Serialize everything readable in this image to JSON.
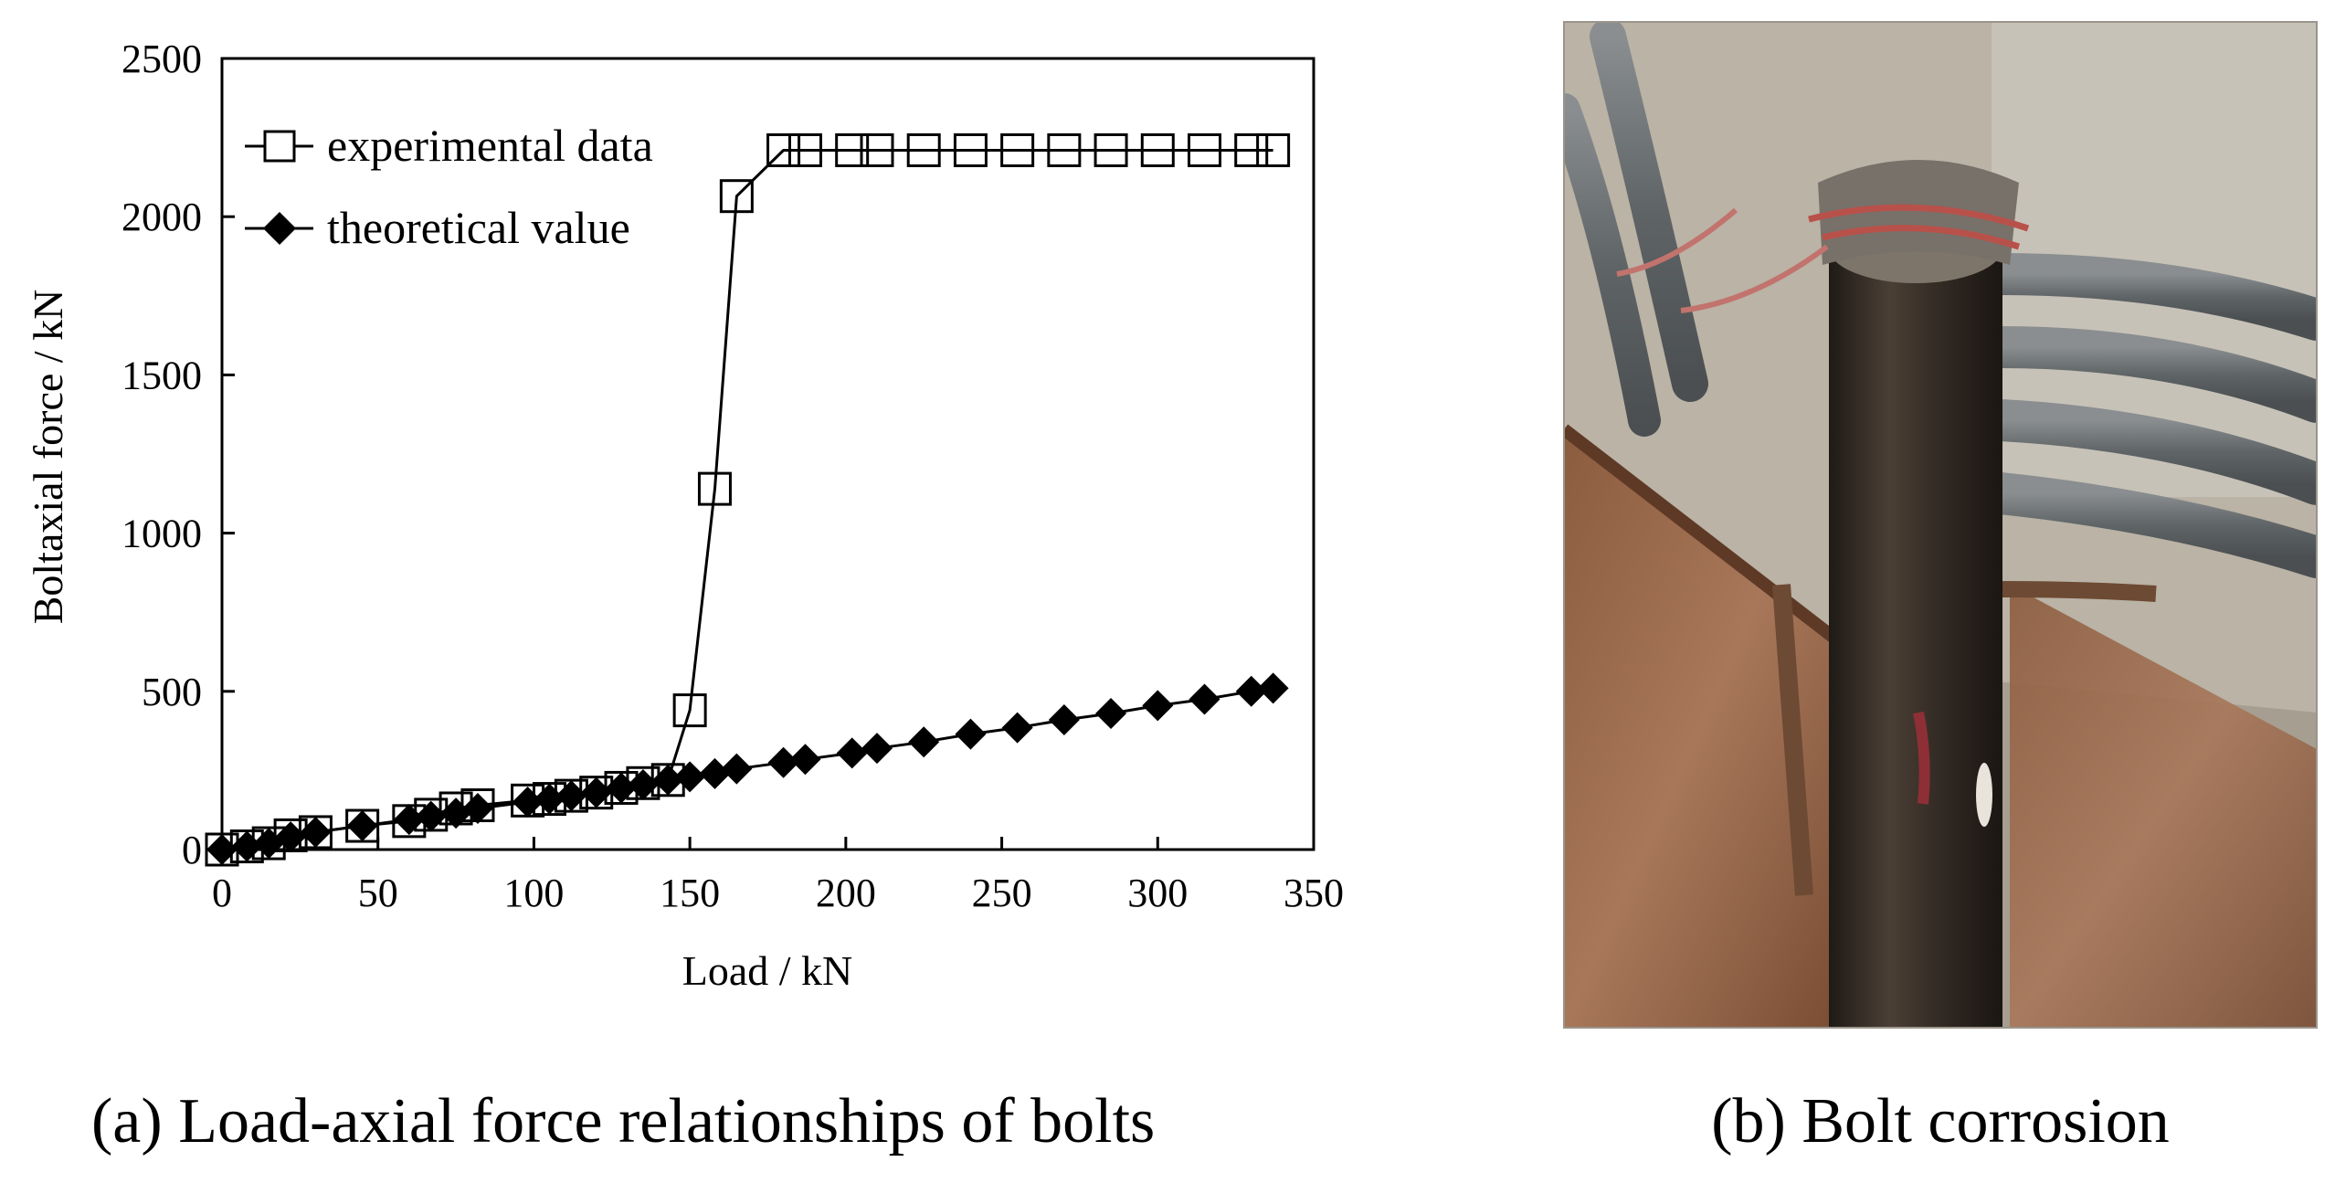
{
  "captions": {
    "a": "(a) Load-axial force relationships of bolts",
    "b": "(b) Bolt corrosion"
  },
  "photo": {
    "subject": "corroded bolt photo",
    "colors": {
      "background": "#b8b2a6",
      "rail": "#9a6a4a",
      "bolt": "#3a3028",
      "cables": "#6f7375",
      "floor": "#a69e90"
    }
  },
  "chart_data": {
    "type": "line",
    "xlabel": "Load / kN",
    "ylabel": "Boltaxial force / kN",
    "xlim": [
      0,
      350
    ],
    "ylim": [
      0,
      2500
    ],
    "xticks": [
      "0",
      "50",
      "100",
      "150",
      "200",
      "250",
      "300",
      "350"
    ],
    "yticks": [
      "0",
      "500",
      "1000",
      "1500",
      "2000",
      "2500"
    ],
    "grid": false,
    "legend_position": "top-left",
    "series": [
      {
        "name": "experimental data",
        "marker": "open-square",
        "color": "#000000",
        "x": [
          0,
          8,
          15,
          22,
          30,
          45,
          60,
          67,
          75,
          82,
          98,
          105,
          112,
          120,
          128,
          135,
          143,
          150,
          158,
          165,
          180,
          187,
          202,
          210,
          225,
          240,
          255,
          270,
          285,
          300,
          315,
          330,
          337
        ],
        "y": [
          0,
          10,
          20,
          45,
          55,
          75,
          90,
          110,
          130,
          140,
          155,
          160,
          170,
          180,
          195,
          210,
          220,
          440,
          1140,
          2065,
          2210,
          2210,
          2210,
          2210,
          2210,
          2210,
          2210,
          2210,
          2210,
          2210,
          2210,
          2210,
          2210
        ]
      },
      {
        "name": "theoretical value",
        "marker": "filled-diamond",
        "color": "#000000",
        "x": [
          0,
          8,
          15,
          22,
          30,
          45,
          60,
          67,
          75,
          82,
          98,
          105,
          112,
          120,
          128,
          135,
          143,
          150,
          158,
          165,
          180,
          187,
          202,
          210,
          225,
          240,
          255,
          270,
          285,
          300,
          315,
          330,
          337
        ],
        "y": [
          0,
          10,
          20,
          40,
          55,
          75,
          95,
          105,
          115,
          130,
          150,
          160,
          170,
          180,
          195,
          205,
          220,
          230,
          240,
          255,
          275,
          285,
          305,
          320,
          340,
          365,
          385,
          410,
          430,
          455,
          475,
          500,
          510
        ]
      }
    ]
  }
}
